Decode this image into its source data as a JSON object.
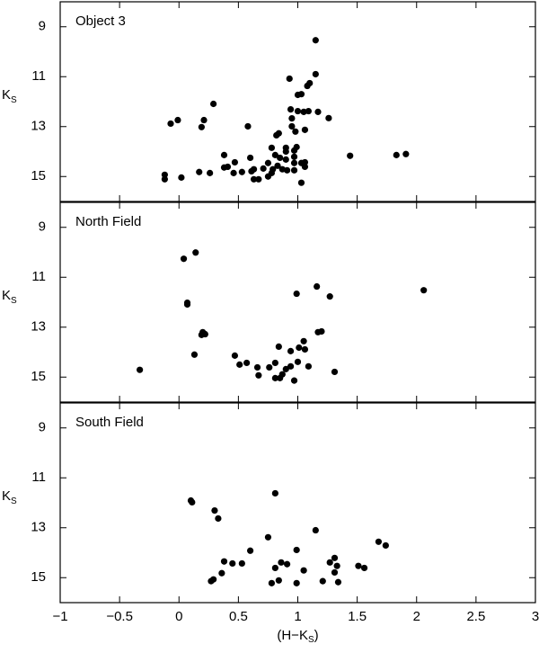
{
  "chart_data": [
    {
      "type": "scatter",
      "title": "Object 3",
      "ylabel": [
        "K",
        "S"
      ],
      "color": "#000000",
      "x": [
        1.15,
        1.15,
        0.93,
        1.1,
        1.08,
        1.03,
        1.0,
        0.29,
        0.94,
        1.0,
        1.05,
        1.09,
        1.17,
        1.26,
        0.95,
        -0.01,
        0.21,
        -0.07,
        0.19,
        0.58,
        0.95,
        1.06,
        0.98,
        0.84,
        0.82,
        0.99,
        0.78,
        0.9,
        0.9,
        0.97,
        0.38,
        0.6,
        0.81,
        0.85,
        0.9,
        0.97,
        1.44,
        1.83,
        1.91,
        1.06,
        1.03,
        0.47,
        0.75,
        0.97,
        0.41,
        0.38,
        0.83,
        0.71,
        0.87,
        1.06,
        0.63,
        0.79,
        0.91,
        0.97,
        0.17,
        0.26,
        0.46,
        0.53,
        0.61,
        0.78,
        -0.12,
        -0.12,
        0.02,
        0.63,
        0.67,
        0.75,
        1.03
      ],
      "y": [
        9.54,
        10.9,
        11.08,
        11.26,
        11.37,
        11.7,
        11.73,
        12.09,
        12.31,
        12.38,
        12.41,
        12.38,
        12.41,
        12.66,
        12.67,
        12.74,
        12.74,
        12.88,
        13.02,
        12.99,
        12.99,
        13.13,
        13.2,
        13.27,
        13.35,
        13.82,
        13.85,
        13.85,
        14.0,
        13.96,
        14.14,
        14.25,
        14.14,
        14.25,
        14.32,
        14.21,
        14.17,
        14.14,
        14.1,
        14.43,
        14.46,
        14.43,
        14.46,
        14.46,
        14.61,
        14.64,
        14.57,
        14.68,
        14.71,
        14.61,
        14.71,
        14.71,
        14.75,
        14.75,
        14.82,
        14.86,
        14.86,
        14.82,
        14.79,
        14.86,
        14.93,
        15.11,
        15.04,
        15.11,
        15.11,
        15.0,
        15.25
      ],
      "xlim": [
        -1,
        3
      ],
      "xticks": [
        -1,
        -0.5,
        0,
        0.5,
        1,
        1.5,
        2,
        2.5,
        3
      ],
      "ylim": [
        16,
        8
      ],
      "yticks": [
        9,
        11,
        13,
        15
      ]
    },
    {
      "type": "scatter",
      "title": "North Field",
      "ylabel": [
        "K",
        "S"
      ],
      "color": "#000000",
      "x": [
        0.14,
        0.04,
        2.06,
        1.16,
        0.99,
        1.27,
        0.07,
        0.07,
        1.17,
        1.2,
        0.2,
        0.19,
        0.22,
        1.05,
        1.01,
        0.84,
        0.94,
        1.06,
        0.13,
        0.47,
        1.0,
        0.81,
        0.57,
        0.51,
        0.94,
        0.66,
        0.76,
        0.9,
        1.09,
        -0.33,
        1.31,
        0.67,
        0.87,
        0.81,
        0.85,
        0.97
      ],
      "y": [
        10.01,
        10.26,
        11.52,
        11.37,
        11.66,
        11.77,
        12.02,
        12.09,
        13.2,
        13.17,
        13.2,
        13.31,
        13.28,
        13.56,
        13.82,
        13.78,
        13.96,
        13.89,
        14.1,
        14.14,
        14.39,
        14.43,
        14.43,
        14.5,
        14.57,
        14.61,
        14.61,
        14.68,
        14.57,
        14.71,
        14.79,
        14.93,
        14.89,
        15.04,
        15.04,
        15.14
      ],
      "xlim": [
        -1,
        3
      ],
      "xticks": [
        -1,
        -0.5,
        0,
        0.5,
        1,
        1.5,
        2,
        2.5,
        3
      ],
      "ylim": [
        16,
        8
      ],
      "yticks": [
        9,
        11,
        13,
        15
      ]
    },
    {
      "type": "scatter",
      "title": "South Field",
      "ylabel": [
        "K",
        "S"
      ],
      "xlabel": [
        "(H−K",
        "S",
        ")"
      ],
      "color": "#000000",
      "x": [
        0.81,
        0.1,
        0.11,
        0.3,
        0.33,
        1.15,
        1.68,
        1.74,
        0.75,
        0.6,
        0.99,
        1.31,
        1.27,
        0.38,
        0.45,
        0.53,
        0.86,
        0.91,
        1.33,
        1.51,
        1.56,
        0.81,
        1.05,
        1.31,
        0.36,
        0.29,
        0.27,
        0.84,
        0.78,
        0.99,
        1.21,
        1.34
      ],
      "y": [
        11.62,
        11.91,
        11.98,
        12.31,
        12.63,
        13.1,
        13.56,
        13.71,
        13.38,
        13.92,
        13.89,
        14.21,
        14.39,
        14.35,
        14.43,
        14.43,
        14.39,
        14.46,
        14.53,
        14.53,
        14.61,
        14.61,
        14.71,
        14.79,
        14.82,
        15.07,
        15.14,
        15.11,
        15.22,
        15.22,
        15.14,
        15.18
      ],
      "xlim": [
        -1,
        3
      ],
      "xticks": [
        {
          "value": -1,
          "label": "−1"
        },
        {
          "value": -0.5,
          "label": "−0.5"
        },
        0,
        0.5,
        1,
        1.5,
        2,
        2.5,
        3
      ],
      "ylim": [
        16,
        8
      ],
      "yticks": [
        9,
        11,
        13,
        15
      ]
    }
  ]
}
